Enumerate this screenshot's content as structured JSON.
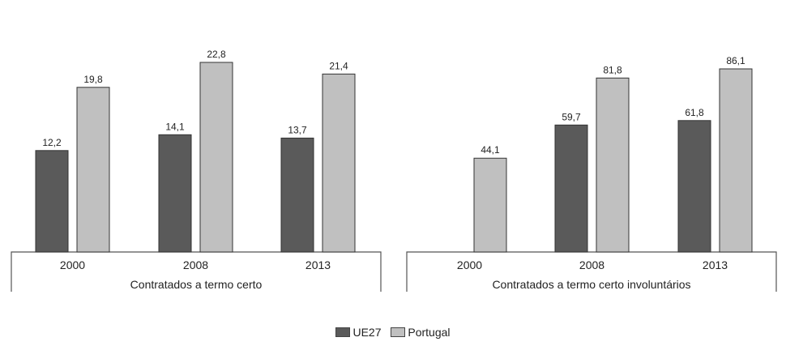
{
  "chart_data": [
    {
      "type": "bar",
      "title": "Contratados a termo certo",
      "categories": [
        "2000",
        "2008",
        "2013"
      ],
      "series": [
        {
          "name": "UE27",
          "values": [
            12.2,
            14.1,
            13.7
          ],
          "labels": [
            "12,2",
            "14,1",
            "13,7"
          ]
        },
        {
          "name": "Portugal",
          "values": [
            19.8,
            22.8,
            21.4
          ],
          "labels": [
            "19,8",
            "22,8",
            "21,4"
          ]
        }
      ],
      "ylim": [
        0,
        24
      ]
    },
    {
      "type": "bar",
      "title": "Contratados a termo certo involuntários",
      "categories": [
        "2000",
        "2008",
        "2013"
      ],
      "series": [
        {
          "name": "UE27",
          "values": [
            null,
            59.7,
            61.8
          ],
          "labels": [
            "",
            "59,7",
            "61,8"
          ]
        },
        {
          "name": "Portugal",
          "values": [
            44.1,
            81.8,
            86.1
          ],
          "labels": [
            "44,1",
            "81,8",
            "86,1"
          ]
        }
      ],
      "ylim": [
        0,
        95
      ]
    }
  ],
  "legend": [
    {
      "name": "UE27",
      "color": "#5a5a5a"
    },
    {
      "name": "Portugal",
      "color": "#c0c0c0"
    }
  ]
}
